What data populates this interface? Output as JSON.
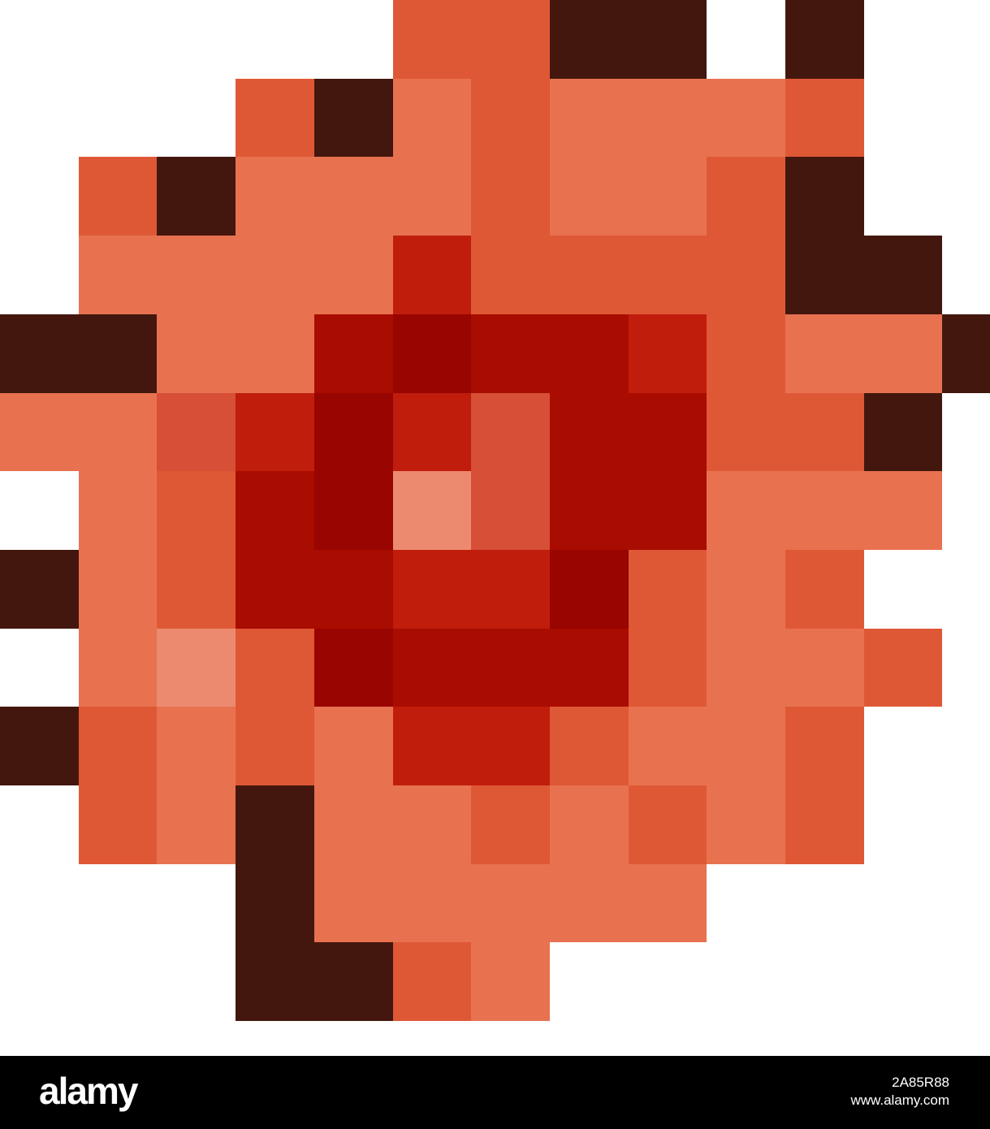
{
  "palette": {
    "W": "#ffffff",
    "D": "#43170e",
    "O": "#df5835",
    "L": "#e87250",
    "R": "#c01d0c",
    "M": "#a90c00",
    "K": "#990500",
    "P": "#ec8a70",
    "S": "#d64f36"
  },
  "pixel_rows": [
    "WWWWWOODDWDWW",
    "WWWODLOLLLOWW",
    "WODLLLOLLODWW",
    "WLLLLROOOODDW",
    "DDLLMKMMROLLD",
    "LLSRKRSMMOODW",
    "WLOMKPSMMLLLW",
    "DLOMMRRKOLOWW",
    "WLPOKMMMOLLOW",
    "DOLOLRROLLOWW",
    "WOLDLLOLOLOWW",
    "WWWDLLLLLWWWW",
    "WWWDDOLWWWWWW"
  ],
  "watermark": {
    "logo": "alamy",
    "image_id": "2A85R88",
    "site": "www.alamy.com"
  }
}
